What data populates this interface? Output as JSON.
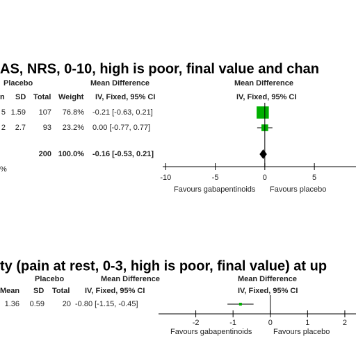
{
  "chart_data": [
    {
      "type": "forest",
      "title": "AS, NRS, 0-10, high is poor, final value and chan",
      "group_headers": [
        "Placebo",
        "Mean Difference",
        "Mean Difference"
      ],
      "columns": [
        "n",
        "SD",
        "Total",
        "Weight",
        "IV, Fixed, 95% CI",
        "IV, Fixed, 95% CI"
      ],
      "rows": [
        {
          "cells": [
            "5",
            1.59,
            107
          ],
          "weight": 76.8,
          "weight_label": "76.8%",
          "md": -0.21,
          "ci": [
            -0.63,
            0.21
          ],
          "ci_label": "-0.21 [-0.63, 0.21]"
        },
        {
          "cells": [
            "2",
            2.7,
            93
          ],
          "weight": 23.2,
          "weight_label": "23.2%",
          "md": 0.0,
          "ci": [
            -0.77,
            0.77
          ],
          "ci_label": "0.00 [-0.77, 0.77]"
        }
      ],
      "total": {
        "total": 200,
        "weight": 100,
        "weight_label": "100.0%",
        "md": -0.16,
        "ci": [
          -0.53,
          0.21
        ],
        "ci_label": "-0.16 [-0.53, 0.21]"
      },
      "footnote": "%",
      "xlim": [
        -10.3,
        9.2
      ],
      "xticks": [
        -10,
        -5,
        0,
        5
      ],
      "favours": [
        "Favours gabapentinoids",
        "Favours placebo"
      ],
      "color": "#00b000"
    },
    {
      "type": "forest",
      "title": "ty (pain at rest, 0-3, high is poor, final value) at up",
      "group_headers": [
        "Placebo",
        "Mean Difference",
        "Mean Difference"
      ],
      "columns": [
        "Mean",
        "SD",
        "Total",
        "IV, Fixed, 95% CI",
        "IV, Fixed, 95% CI"
      ],
      "rows": [
        {
          "cells": [
            1.36,
            0.59,
            20
          ],
          "md": -0.8,
          "ci": [
            -1.15,
            -0.45
          ],
          "ci_label": "-0.80 [-1.15, -0.45]"
        }
      ],
      "xlim": [
        -3,
        2.3
      ],
      "xticks": [
        -2,
        -1,
        0,
        1,
        2
      ],
      "favours": [
        "Favours gabapentinoids",
        "Favours placebo"
      ],
      "color": "#00b000"
    }
  ]
}
